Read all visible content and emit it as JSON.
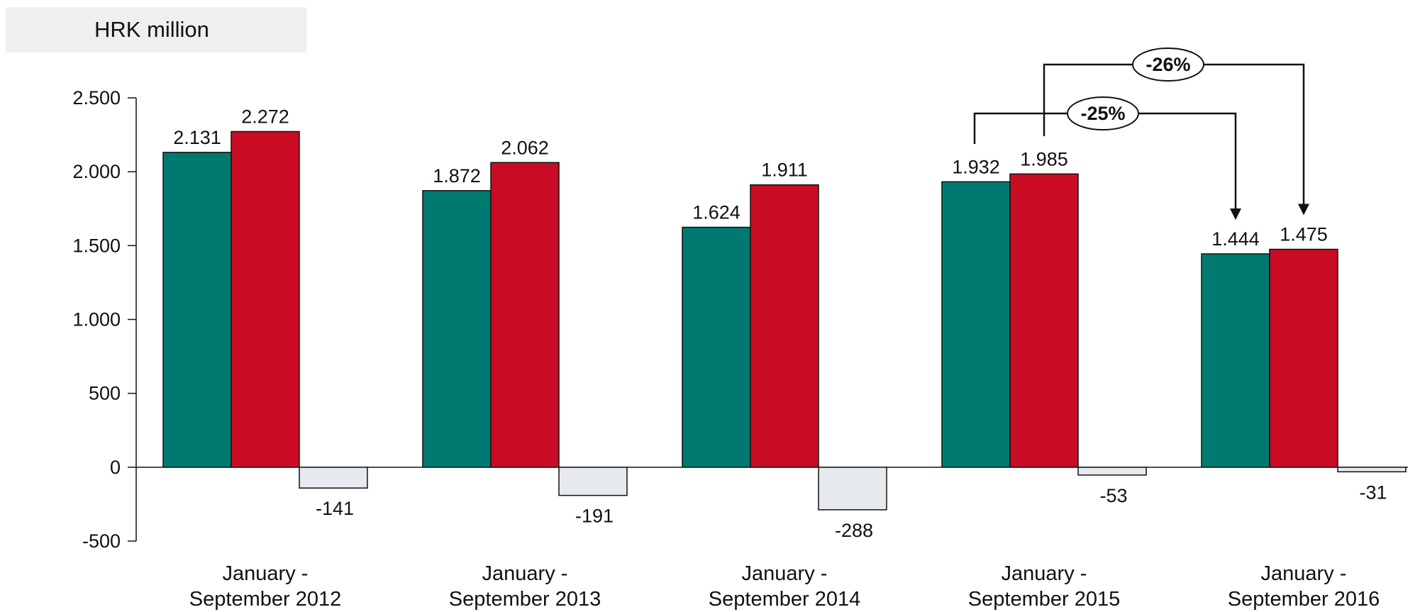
{
  "unit_label": "HRK million",
  "colors": {
    "series1": "#007A70",
    "series2": "#C90C23",
    "series3": "#E6E9EE"
  },
  "chart_data": {
    "type": "bar",
    "title": "",
    "xlabel": "",
    "ylabel": "HRK million",
    "ylim": [
      -500,
      2500
    ],
    "yticks": [
      -500,
      0,
      500,
      1000,
      1500,
      2000,
      2500
    ],
    "ytick_labels": [
      "-500",
      "0",
      "500",
      "1.000",
      "1.500",
      "2.000",
      "2.500"
    ],
    "grid": false,
    "legend": "none",
    "categories": [
      [
        "January -",
        "September 2012"
      ],
      [
        "January -",
        "September 2013"
      ],
      [
        "January -",
        "September  2014"
      ],
      [
        "January -",
        "September  2015"
      ],
      [
        "January -",
        "September 2016"
      ]
    ],
    "series": [
      {
        "values": [
          2131,
          1872,
          1624,
          1932,
          1444
        ],
        "labels": [
          "2.131",
          "1.872",
          "1.624",
          "1.932",
          "1.444"
        ]
      },
      {
        "values": [
          2272,
          2062,
          1911,
          1985,
          1475
        ],
        "labels": [
          "2.272",
          "2.062",
          "1.911",
          "1.985",
          "1.475"
        ]
      },
      {
        "values": [
          -141,
          -191,
          -288,
          -53,
          -31
        ],
        "labels": [
          "-141",
          "-191",
          "-288",
          "-53",
          "-31"
        ]
      }
    ],
    "annotations": [
      {
        "text": "-25%",
        "from_category": 3,
        "from_series": 0,
        "to_category": 4,
        "to_series": 0
      },
      {
        "text": "-26%",
        "from_category": 3,
        "from_series": 1,
        "to_category": 4,
        "to_series": 1
      }
    ]
  }
}
